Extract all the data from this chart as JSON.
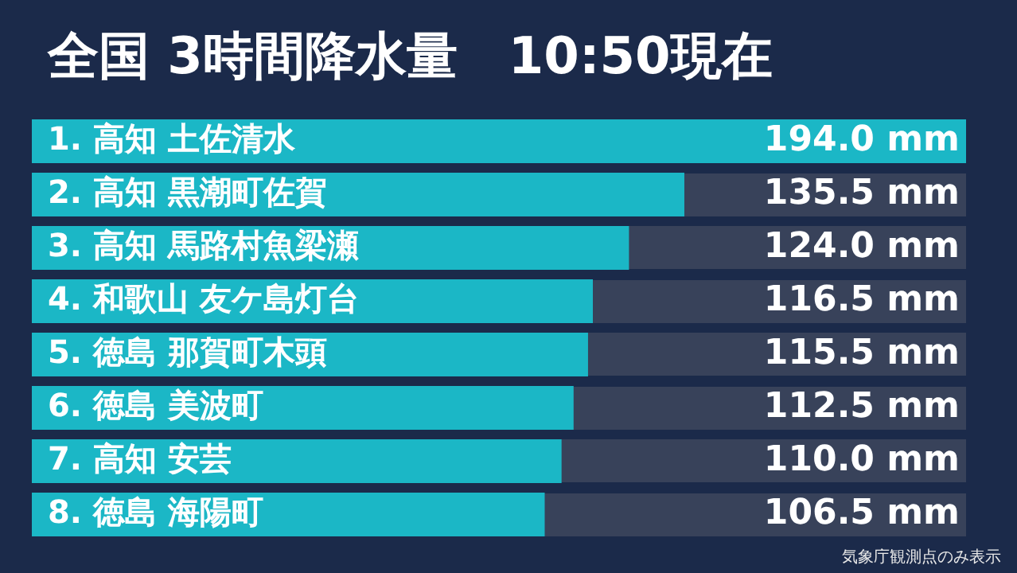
{
  "chart_data": {
    "type": "bar",
    "orientation": "horizontal",
    "title": "全国 3時間降水量　10:50現在",
    "categories": [
      "1. 高知 土佐清水",
      "2. 高知 黒潮町佐賀",
      "3. 高知 馬路村魚梁瀬",
      "4. 和歌山 友ケ島灯台",
      "5. 徳島 那賀町木頭",
      "6. 徳島 美波町",
      "7. 高知 安芸",
      "8. 徳島 海陽町"
    ],
    "values": [
      194.0,
      135.5,
      124.0,
      116.5,
      115.5,
      112.5,
      110.0,
      106.5
    ],
    "value_labels": [
      "194.0 mm",
      "135.5 mm",
      "124.0 mm",
      "116.5 mm",
      "115.5 mm",
      "112.5 mm",
      "110.0 mm",
      "106.5 mm"
    ],
    "color": "#1bb7c6",
    "tick_labels": "y",
    "legend": false,
    "annotations": [
      "気象庁観測点のみ表示"
    ]
  }
}
